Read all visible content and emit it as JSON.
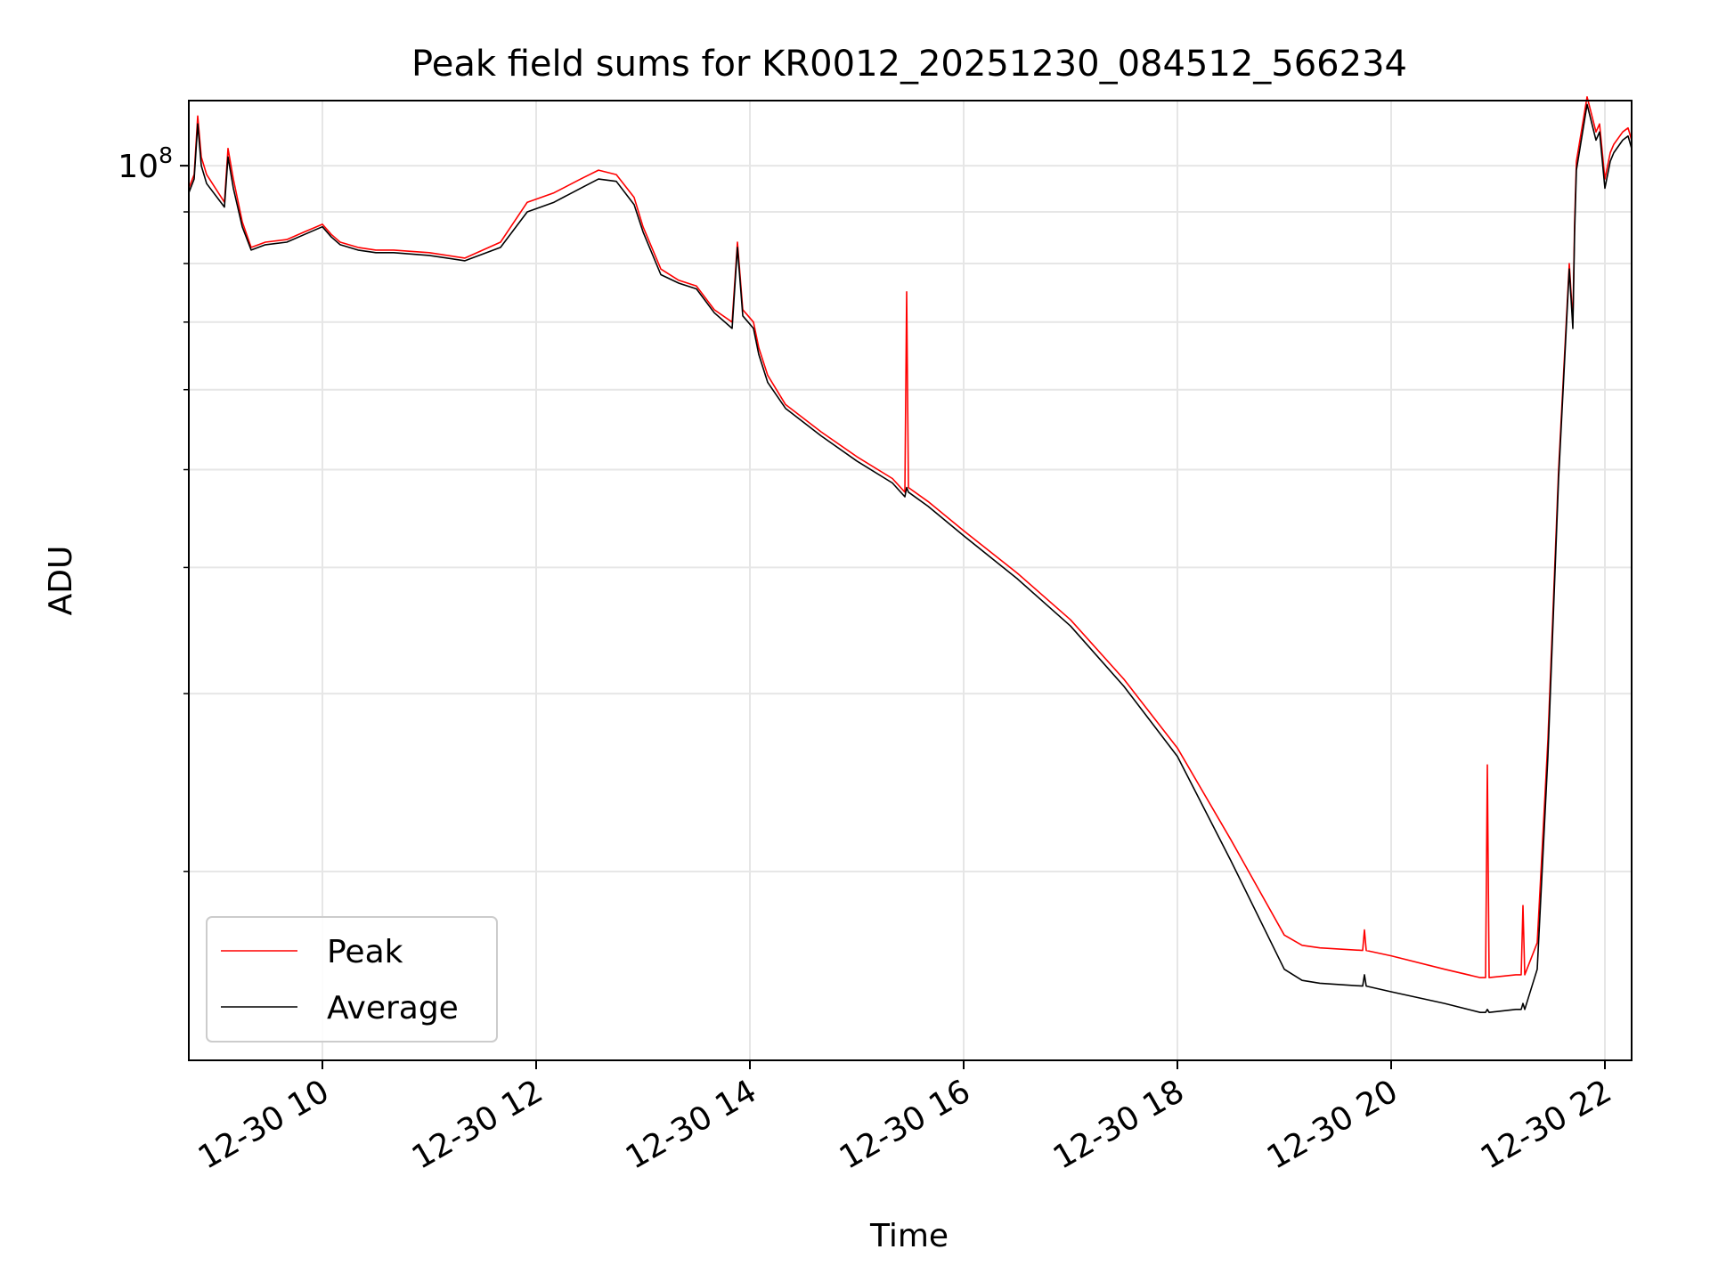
{
  "chart_data": {
    "type": "line",
    "title": "Peak field sums for KR0012_20251230_084512_566234",
    "xlabel": "Time",
    "ylabel": "ADU",
    "yscale": "log",
    "ylim": [
      13000000,
      116000000
    ],
    "xlim": [
      "2025-12-30 08:45",
      "2025-12-30 22:15"
    ],
    "x_tick_labels": [
      "12-30 10",
      "12-30 12",
      "12-30 14",
      "12-30 16",
      "12-30 18",
      "12-30 20",
      "12-30 22"
    ],
    "x_tick_values": [
      "2025-12-30 10:00",
      "2025-12-30 12:00",
      "2025-12-30 14:00",
      "2025-12-30 16:00",
      "2025-12-30 18:00",
      "2025-12-30 20:00",
      "2025-12-30 22:00"
    ],
    "y_tick_label": "10^8",
    "y_tick_value": 100000000,
    "y_minor_ticks": [
      20000000,
      30000000,
      40000000,
      50000000,
      60000000,
      70000000,
      80000000,
      90000000
    ],
    "grid": true,
    "legend": "lower-left",
    "series": [
      {
        "name": "Peak",
        "color": "#ff0000",
        "x": [
          "2025-12-30 08:45",
          "2025-12-30 08:48",
          "2025-12-30 08:50",
          "2025-12-30 08:52",
          "2025-12-30 08:55",
          "2025-12-30 09:05",
          "2025-12-30 09:07",
          "2025-12-30 09:10",
          "2025-12-30 09:15",
          "2025-12-30 09:20",
          "2025-12-30 09:28",
          "2025-12-30 09:40",
          "2025-12-30 09:50",
          "2025-12-30 10:00",
          "2025-12-30 10:05",
          "2025-12-30 10:10",
          "2025-12-30 10:20",
          "2025-12-30 10:30",
          "2025-12-30 10:40",
          "2025-12-30 11:00",
          "2025-12-30 11:20",
          "2025-12-30 11:40",
          "2025-12-30 11:55",
          "2025-12-30 12:10",
          "2025-12-30 12:25",
          "2025-12-30 12:35",
          "2025-12-30 12:45",
          "2025-12-30 12:55",
          "2025-12-30 13:00",
          "2025-12-30 13:10",
          "2025-12-30 13:20",
          "2025-12-30 13:30",
          "2025-12-30 13:40",
          "2025-12-30 13:50",
          "2025-12-30 13:53",
          "2025-12-30 13:56",
          "2025-12-30 13:59",
          "2025-12-30 14:02",
          "2025-12-30 14:05",
          "2025-12-30 14:10",
          "2025-12-30 14:20",
          "2025-12-30 14:40",
          "2025-12-30 15:00",
          "2025-12-30 15:20",
          "2025-12-30 15:27",
          "2025-12-30 15:28",
          "2025-12-30 15:29",
          "2025-12-30 15:40",
          "2025-12-30 16:00",
          "2025-12-30 16:30",
          "2025-12-30 17:00",
          "2025-12-30 17:30",
          "2025-12-30 18:00",
          "2025-12-30 18:30",
          "2025-12-30 19:00",
          "2025-12-30 19:10",
          "2025-12-30 19:20",
          "2025-12-30 19:44",
          "2025-12-30 19:45",
          "2025-12-30 19:46",
          "2025-12-30 20:00",
          "2025-12-30 20:30",
          "2025-12-30 20:50",
          "2025-12-30 20:53",
          "2025-12-30 20:54",
          "2025-12-30 20:55",
          "2025-12-30 21:10",
          "2025-12-30 21:13",
          "2025-12-30 21:14",
          "2025-12-30 21:15",
          "2025-12-30 21:22",
          "2025-12-30 21:28",
          "2025-12-30 21:34",
          "2025-12-30 21:40",
          "2025-12-30 21:42",
          "2025-12-30 21:43",
          "2025-12-30 21:44",
          "2025-12-30 21:50",
          "2025-12-30 21:55",
          "2025-12-30 21:57",
          "2025-12-30 22:00",
          "2025-12-30 22:03",
          "2025-12-30 22:05",
          "2025-12-30 22:10",
          "2025-12-30 22:13",
          "2025-12-30 22:15"
        ],
        "values": [
          95000000,
          98000000,
          112000000,
          102000000,
          98000000,
          92000000,
          104000000,
          97000000,
          88000000,
          83000000,
          84000000,
          84500000,
          86000000,
          87500000,
          85500000,
          84000000,
          83000000,
          82500000,
          82500000,
          82000000,
          81000000,
          84000000,
          92000000,
          94000000,
          97000000,
          99000000,
          98000000,
          93000000,
          87000000,
          79000000,
          77000000,
          76000000,
          72000000,
          70000000,
          84000000,
          72000000,
          71000000,
          70000000,
          66000000,
          62000000,
          58000000,
          54500000,
          51500000,
          49000000,
          47500000,
          75000000,
          48000000,
          46500000,
          43500000,
          39500000,
          35500000,
          31000000,
          26500000,
          21500000,
          17300000,
          16900000,
          16800000,
          16700000,
          17500000,
          16700000,
          16500000,
          16000000,
          15700000,
          15700000,
          25500000,
          15700000,
          15800000,
          15800000,
          18500000,
          15800000,
          17000000,
          27000000,
          50000000,
          80000000,
          70000000,
          88000000,
          101000000,
          117000000,
          108000000,
          110000000,
          97000000,
          103000000,
          105000000,
          108000000,
          109000000,
          106000000
        ]
      },
      {
        "name": "Average",
        "color": "#000000",
        "x": [
          "2025-12-30 08:45",
          "2025-12-30 08:48",
          "2025-12-30 08:50",
          "2025-12-30 08:52",
          "2025-12-30 08:55",
          "2025-12-30 09:05",
          "2025-12-30 09:07",
          "2025-12-30 09:10",
          "2025-12-30 09:15",
          "2025-12-30 09:20",
          "2025-12-30 09:28",
          "2025-12-30 09:40",
          "2025-12-30 09:50",
          "2025-12-30 10:00",
          "2025-12-30 10:05",
          "2025-12-30 10:10",
          "2025-12-30 10:20",
          "2025-12-30 10:30",
          "2025-12-30 10:40",
          "2025-12-30 11:00",
          "2025-12-30 11:20",
          "2025-12-30 11:40",
          "2025-12-30 11:55",
          "2025-12-30 12:10",
          "2025-12-30 12:25",
          "2025-12-30 12:35",
          "2025-12-30 12:45",
          "2025-12-30 12:55",
          "2025-12-30 13:00",
          "2025-12-30 13:10",
          "2025-12-30 13:20",
          "2025-12-30 13:30",
          "2025-12-30 13:40",
          "2025-12-30 13:50",
          "2025-12-30 13:53",
          "2025-12-30 13:56",
          "2025-12-30 13:59",
          "2025-12-30 14:02",
          "2025-12-30 14:05",
          "2025-12-30 14:10",
          "2025-12-30 14:20",
          "2025-12-30 14:40",
          "2025-12-30 15:00",
          "2025-12-30 15:20",
          "2025-12-30 15:27",
          "2025-12-30 15:28",
          "2025-12-30 15:29",
          "2025-12-30 15:40",
          "2025-12-30 16:00",
          "2025-12-30 16:30",
          "2025-12-30 17:00",
          "2025-12-30 17:30",
          "2025-12-30 18:00",
          "2025-12-30 18:30",
          "2025-12-30 19:00",
          "2025-12-30 19:10",
          "2025-12-30 19:20",
          "2025-12-30 19:44",
          "2025-12-30 19:45",
          "2025-12-30 19:46",
          "2025-12-30 20:00",
          "2025-12-30 20:30",
          "2025-12-30 20:50",
          "2025-12-30 20:53",
          "2025-12-30 20:54",
          "2025-12-30 20:55",
          "2025-12-30 21:10",
          "2025-12-30 21:13",
          "2025-12-30 21:14",
          "2025-12-30 21:15",
          "2025-12-30 21:22",
          "2025-12-30 21:28",
          "2025-12-30 21:34",
          "2025-12-30 21:40",
          "2025-12-30 21:42",
          "2025-12-30 21:43",
          "2025-12-30 21:44",
          "2025-12-30 21:50",
          "2025-12-30 21:55",
          "2025-12-30 21:57",
          "2025-12-30 22:00",
          "2025-12-30 22:03",
          "2025-12-30 22:05",
          "2025-12-30 22:10",
          "2025-12-30 22:13",
          "2025-12-30 22:15"
        ],
        "values": [
          94000000,
          97000000,
          110000000,
          100000000,
          96000000,
          91000000,
          102000000,
          95000000,
          87000000,
          82500000,
          83500000,
          84000000,
          85500000,
          87000000,
          85000000,
          83500000,
          82500000,
          82000000,
          82000000,
          81500000,
          80500000,
          83000000,
          90000000,
          92000000,
          95000000,
          97000000,
          96500000,
          91500000,
          86000000,
          78000000,
          76500000,
          75500000,
          71500000,
          69000000,
          83000000,
          71000000,
          70000000,
          69000000,
          65000000,
          61000000,
          57500000,
          54000000,
          51000000,
          48500000,
          47000000,
          48000000,
          47500000,
          46000000,
          43000000,
          39000000,
          35000000,
          30500000,
          26000000,
          20500000,
          16000000,
          15600000,
          15500000,
          15400000,
          15800000,
          15400000,
          15200000,
          14800000,
          14500000,
          14500000,
          14600000,
          14500000,
          14600000,
          14600000,
          14800000,
          14600000,
          16000000,
          26000000,
          49000000,
          79000000,
          69000000,
          86000000,
          99000000,
          115000000,
          106000000,
          108000000,
          95000000,
          101000000,
          103000000,
          106000000,
          107000000,
          104000000
        ]
      }
    ]
  }
}
